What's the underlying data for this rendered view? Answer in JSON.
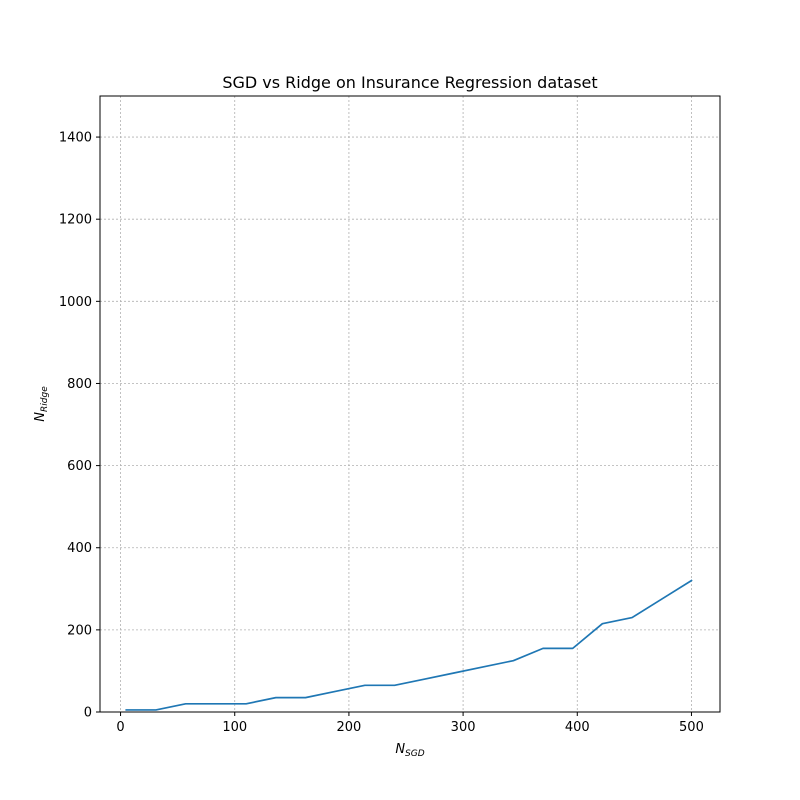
{
  "chart_data": {
    "type": "line",
    "title": "SGD vs Ridge on Insurance Regression dataset",
    "xlabel": {
      "base": "N",
      "sub": "SGD"
    },
    "ylabel": {
      "base": "N",
      "sub": "Ridge"
    },
    "xlim": [
      -18,
      525
    ],
    "ylim": [
      0,
      1500
    ],
    "xticks": [
      0,
      100,
      200,
      300,
      400,
      500
    ],
    "yticks": [
      0,
      200,
      400,
      600,
      800,
      1000,
      1200,
      1400
    ],
    "grid": true,
    "series": [
      {
        "color": "#1f77b4",
        "x": [
          5,
          31,
          57,
          83,
          110,
          136,
          162,
          188,
          214,
          240,
          266,
          292,
          318,
          344,
          370,
          396,
          422,
          448,
          474,
          500
        ],
        "y": [
          5,
          5,
          20,
          20,
          20,
          35,
          35,
          50,
          65,
          65,
          80,
          95,
          110,
          125,
          155,
          155,
          215,
          230,
          275,
          320
        ]
      }
    ]
  }
}
